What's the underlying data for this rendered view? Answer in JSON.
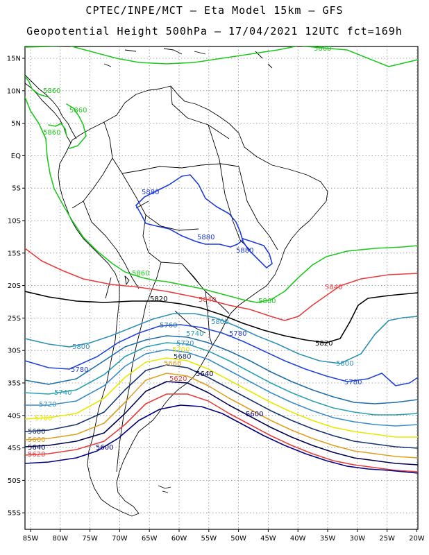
{
  "header": {
    "line1": "CPTEC/INPE/MCT –  Eta Model 15km – GFS",
    "line2": "Geopotential Height 500hPa – 17/04/2021 12UTC fct=169h"
  },
  "axes": {
    "lat_labels": [
      "15N",
      "10N",
      "5N",
      "EQ",
      "5S",
      "10S",
      "15S",
      "20S",
      "25S",
      "30S",
      "35S",
      "40S",
      "45S",
      "50S",
      "55S"
    ],
    "lon_labels": [
      "85W",
      "80W",
      "75W",
      "70W",
      "65W",
      "60W",
      "55W",
      "50W",
      "45W",
      "40W",
      "35W",
      "30W",
      "25W",
      "20W"
    ]
  },
  "colors": {
    "5560": "#000080",
    "5600": "#000080",
    "5620": "#e83c3c",
    "5640": "#000050",
    "5660": "#e0a020",
    "5680": "#17336e",
    "5700": "#e8e800",
    "5720": "#3c8cc8",
    "5740": "#2aa0b0",
    "5760": "#1f6ea8",
    "5780": "#2244dd",
    "5800": "#3090b8",
    "5820": "#000000",
    "5840": "#e83c3c",
    "5860": "#1ec81e",
    "5880": "#1e3cdc"
  },
  "contour_labels": [
    {
      "text": "5860",
      "color": "#1ec81e"
    },
    {
      "text": "5860",
      "color": "#1ec81e"
    },
    {
      "text": "5860",
      "color": "#1ec81e"
    },
    {
      "text": "5860",
      "color": "#1ec81e"
    },
    {
      "text": "5860",
      "color": "#1ec81e"
    },
    {
      "text": "5860",
      "color": "#1ec81e"
    },
    {
      "text": "5880",
      "color": "#1e3cdc"
    },
    {
      "text": "5880",
      "color": "#1e3cdc"
    },
    {
      "text": "5880",
      "color": "#1e3cdc"
    },
    {
      "text": "5840",
      "color": "#e83c3c"
    },
    {
      "text": "5840",
      "color": "#e83c3c"
    },
    {
      "text": "5820",
      "color": "#000000"
    },
    {
      "text": "5820",
      "color": "#000000"
    },
    {
      "text": "5800",
      "color": "#3090b8"
    },
    {
      "text": "5800",
      "color": "#3090b8"
    },
    {
      "text": "5800",
      "color": "#3090b8"
    },
    {
      "text": "5780",
      "color": "#2244dd"
    },
    {
      "text": "5780",
      "color": "#2244dd"
    },
    {
      "text": "5780",
      "color": "#2244dd"
    },
    {
      "text": "5760",
      "color": "#1f6ea8"
    },
    {
      "text": "5740",
      "color": "#2aa0b0"
    },
    {
      "text": "5740",
      "color": "#2aa0b0"
    },
    {
      "text": "5720",
      "color": "#3c8cc8"
    },
    {
      "text": "5720",
      "color": "#3c8cc8"
    },
    {
      "text": "5700",
      "color": "#e8e800"
    },
    {
      "text": "5700",
      "color": "#e8e800"
    },
    {
      "text": "5680",
      "color": "#17336e"
    },
    {
      "text": "5680",
      "color": "#17336e"
    },
    {
      "text": "5660",
      "color": "#e0a020"
    },
    {
      "text": "5660",
      "color": "#e0a020"
    },
    {
      "text": "5640",
      "color": "#000050"
    },
    {
      "text": "5640",
      "color": "#000050"
    },
    {
      "text": "5620",
      "color": "#e83c3c"
    },
    {
      "text": "5620",
      "color": "#e83c3c"
    },
    {
      "text": "5600",
      "color": "#000080"
    },
    {
      "text": "5600",
      "color": "#000080"
    }
  ]
}
